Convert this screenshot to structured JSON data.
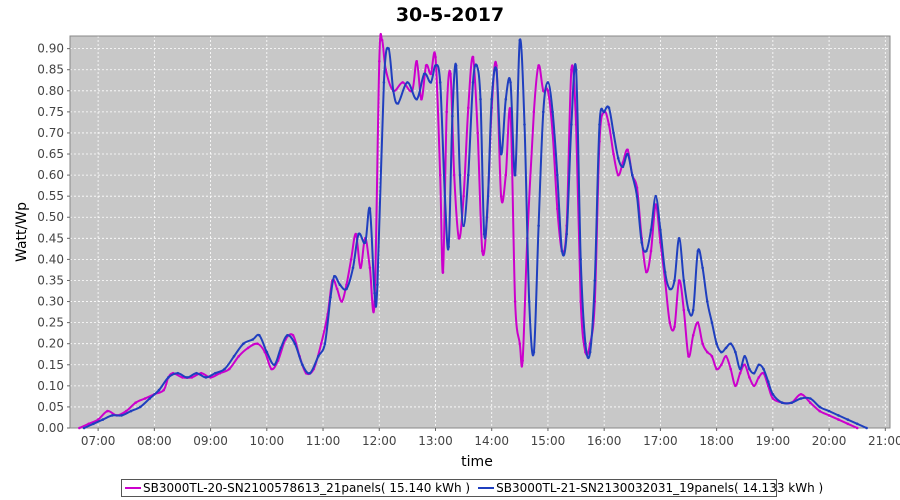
{
  "chart_data": {
    "type": "line",
    "title": "30-5-2017",
    "xlabel": "time",
    "ylabel": "Watt/Wp",
    "x_ticks": [
      "07:00",
      "08:00",
      "09:00",
      "10:00",
      "11:00",
      "12:00",
      "13:00",
      "14:00",
      "15:00",
      "16:00",
      "17:00",
      "18:00",
      "19:00",
      "20:00",
      "21:00"
    ],
    "y_ticks": [
      "0.00",
      "0.05",
      "0.10",
      "0.15",
      "0.20",
      "0.25",
      "0.30",
      "0.35",
      "0.40",
      "0.45",
      "0.50",
      "0.55",
      "0.60",
      "0.65",
      "0.70",
      "0.75",
      "0.80",
      "0.85",
      "0.90"
    ],
    "xlim": [
      "06:30",
      "21:05"
    ],
    "ylim": [
      0,
      0.93
    ],
    "grid": true,
    "legend_position": "bottom",
    "series": [
      {
        "name": "SB3000TL-20-SN2100578613_21panels( 15.140 kWh )",
        "color": "#cc00cc",
        "points": [
          [
            "06:40",
            0.0
          ],
          [
            "06:50",
            0.01
          ],
          [
            "07:00",
            0.02
          ],
          [
            "07:10",
            0.04
          ],
          [
            "07:20",
            0.03
          ],
          [
            "07:30",
            0.04
          ],
          [
            "07:40",
            0.06
          ],
          [
            "07:50",
            0.07
          ],
          [
            "08:00",
            0.08
          ],
          [
            "08:10",
            0.09
          ],
          [
            "08:15",
            0.12
          ],
          [
            "08:20",
            0.13
          ],
          [
            "08:30",
            0.12
          ],
          [
            "08:40",
            0.12
          ],
          [
            "08:50",
            0.13
          ],
          [
            "09:00",
            0.12
          ],
          [
            "09:10",
            0.13
          ],
          [
            "09:20",
            0.14
          ],
          [
            "09:30",
            0.17
          ],
          [
            "09:40",
            0.19
          ],
          [
            "09:50",
            0.2
          ],
          [
            "09:58",
            0.18
          ],
          [
            "10:05",
            0.14
          ],
          [
            "10:12",
            0.16
          ],
          [
            "10:20",
            0.21
          ],
          [
            "10:28",
            0.22
          ],
          [
            "10:35",
            0.17
          ],
          [
            "10:42",
            0.13
          ],
          [
            "10:50",
            0.14
          ],
          [
            "10:58",
            0.2
          ],
          [
            "11:05",
            0.27
          ],
          [
            "11:10",
            0.35
          ],
          [
            "11:15",
            0.33
          ],
          [
            "11:20",
            0.3
          ],
          [
            "11:25",
            0.34
          ],
          [
            "11:30",
            0.4
          ],
          [
            "11:35",
            0.46
          ],
          [
            "11:40",
            0.38
          ],
          [
            "11:45",
            0.45
          ],
          [
            "11:50",
            0.38
          ],
          [
            "11:55",
            0.3
          ],
          [
            "12:00",
            0.87
          ],
          [
            "12:03",
            0.92
          ],
          [
            "12:07",
            0.85
          ],
          [
            "12:15",
            0.8
          ],
          [
            "12:25",
            0.82
          ],
          [
            "12:35",
            0.8
          ],
          [
            "12:40",
            0.87
          ],
          [
            "12:45",
            0.78
          ],
          [
            "12:50",
            0.86
          ],
          [
            "12:55",
            0.84
          ],
          [
            "13:00",
            0.88
          ],
          [
            "13:05",
            0.6
          ],
          [
            "13:08",
            0.37
          ],
          [
            "13:12",
            0.75
          ],
          [
            "13:16",
            0.84
          ],
          [
            "13:20",
            0.6
          ],
          [
            "13:25",
            0.45
          ],
          [
            "13:30",
            0.55
          ],
          [
            "13:35",
            0.76
          ],
          [
            "13:40",
            0.88
          ],
          [
            "13:45",
            0.7
          ],
          [
            "13:50",
            0.42
          ],
          [
            "13:55",
            0.5
          ],
          [
            "14:00",
            0.76
          ],
          [
            "14:05",
            0.86
          ],
          [
            "14:10",
            0.55
          ],
          [
            "14:15",
            0.6
          ],
          [
            "14:20",
            0.75
          ],
          [
            "14:25",
            0.3
          ],
          [
            "14:30",
            0.2
          ],
          [
            "14:33",
            0.16
          ],
          [
            "14:38",
            0.45
          ],
          [
            "14:45",
            0.75
          ],
          [
            "14:50",
            0.86
          ],
          [
            "14:55",
            0.8
          ],
          [
            "15:00",
            0.8
          ],
          [
            "15:05",
            0.7
          ],
          [
            "15:10",
            0.52
          ],
          [
            "15:15",
            0.42
          ],
          [
            "15:20",
            0.48
          ],
          [
            "15:25",
            0.85
          ],
          [
            "15:30",
            0.72
          ],
          [
            "15:35",
            0.3
          ],
          [
            "15:40",
            0.18
          ],
          [
            "15:45",
            0.2
          ],
          [
            "15:50",
            0.3
          ],
          [
            "15:55",
            0.68
          ],
          [
            "16:00",
            0.75
          ],
          [
            "16:05",
            0.72
          ],
          [
            "16:10",
            0.65
          ],
          [
            "16:15",
            0.6
          ],
          [
            "16:20",
            0.63
          ],
          [
            "16:25",
            0.66
          ],
          [
            "16:30",
            0.6
          ],
          [
            "16:35",
            0.57
          ],
          [
            "16:40",
            0.45
          ],
          [
            "16:45",
            0.37
          ],
          [
            "16:50",
            0.42
          ],
          [
            "16:55",
            0.53
          ],
          [
            "17:00",
            0.44
          ],
          [
            "17:05",
            0.35
          ],
          [
            "17:10",
            0.25
          ],
          [
            "17:15",
            0.24
          ],
          [
            "17:20",
            0.35
          ],
          [
            "17:25",
            0.28
          ],
          [
            "17:30",
            0.17
          ],
          [
            "17:35",
            0.22
          ],
          [
            "17:40",
            0.25
          ],
          [
            "17:45",
            0.2
          ],
          [
            "17:50",
            0.18
          ],
          [
            "17:55",
            0.17
          ],
          [
            "18:00",
            0.14
          ],
          [
            "18:05",
            0.15
          ],
          [
            "18:10",
            0.17
          ],
          [
            "18:15",
            0.14
          ],
          [
            "18:20",
            0.1
          ],
          [
            "18:25",
            0.13
          ],
          [
            "18:30",
            0.15
          ],
          [
            "18:35",
            0.12
          ],
          [
            "18:40",
            0.1
          ],
          [
            "18:45",
            0.12
          ],
          [
            "18:50",
            0.13
          ],
          [
            "18:55",
            0.1
          ],
          [
            "19:00",
            0.07
          ],
          [
            "19:10",
            0.06
          ],
          [
            "19:20",
            0.06
          ],
          [
            "19:30",
            0.08
          ],
          [
            "19:40",
            0.06
          ],
          [
            "19:50",
            0.04
          ],
          [
            "20:00",
            0.03
          ],
          [
            "20:10",
            0.02
          ],
          [
            "20:20",
            0.01
          ],
          [
            "20:30",
            0.0
          ]
        ]
      },
      {
        "name": "SB3000TL-21-SN2130032031_19panels( 14.133 kWh )",
        "color": "#1f3fbf",
        "points": [
          [
            "06:45",
            0.0
          ],
          [
            "06:55",
            0.01
          ],
          [
            "07:05",
            0.02
          ],
          [
            "07:15",
            0.03
          ],
          [
            "07:25",
            0.03
          ],
          [
            "07:35",
            0.04
          ],
          [
            "07:45",
            0.05
          ],
          [
            "07:55",
            0.07
          ],
          [
            "08:05",
            0.09
          ],
          [
            "08:15",
            0.12
          ],
          [
            "08:25",
            0.13
          ],
          [
            "08:35",
            0.12
          ],
          [
            "08:45",
            0.13
          ],
          [
            "08:55",
            0.12
          ],
          [
            "09:05",
            0.13
          ],
          [
            "09:15",
            0.14
          ],
          [
            "09:25",
            0.17
          ],
          [
            "09:35",
            0.2
          ],
          [
            "09:45",
            0.21
          ],
          [
            "09:52",
            0.22
          ],
          [
            "10:00",
            0.18
          ],
          [
            "10:08",
            0.15
          ],
          [
            "10:15",
            0.19
          ],
          [
            "10:22",
            0.22
          ],
          [
            "10:30",
            0.2
          ],
          [
            "10:38",
            0.15
          ],
          [
            "10:46",
            0.13
          ],
          [
            "10:55",
            0.17
          ],
          [
            "11:02",
            0.2
          ],
          [
            "11:08",
            0.31
          ],
          [
            "11:12",
            0.36
          ],
          [
            "11:18",
            0.34
          ],
          [
            "11:25",
            0.33
          ],
          [
            "11:32",
            0.38
          ],
          [
            "11:38",
            0.46
          ],
          [
            "11:45",
            0.44
          ],
          [
            "11:50",
            0.52
          ],
          [
            "11:55",
            0.32
          ],
          [
            "11:58",
            0.34
          ],
          [
            "12:05",
            0.82
          ],
          [
            "12:10",
            0.9
          ],
          [
            "12:15",
            0.8
          ],
          [
            "12:20",
            0.77
          ],
          [
            "12:30",
            0.82
          ],
          [
            "12:40",
            0.78
          ],
          [
            "12:48",
            0.84
          ],
          [
            "12:55",
            0.82
          ],
          [
            "13:00",
            0.86
          ],
          [
            "13:05",
            0.82
          ],
          [
            "13:10",
            0.55
          ],
          [
            "13:14",
            0.43
          ],
          [
            "13:18",
            0.74
          ],
          [
            "13:22",
            0.86
          ],
          [
            "13:26",
            0.6
          ],
          [
            "13:30",
            0.48
          ],
          [
            "13:35",
            0.6
          ],
          [
            "13:40",
            0.82
          ],
          [
            "13:44",
            0.86
          ],
          [
            "13:48",
            0.78
          ],
          [
            "13:52",
            0.46
          ],
          [
            "13:56",
            0.55
          ],
          [
            "14:00",
            0.78
          ],
          [
            "14:05",
            0.85
          ],
          [
            "14:10",
            0.65
          ],
          [
            "14:15",
            0.78
          ],
          [
            "14:20",
            0.82
          ],
          [
            "14:25",
            0.6
          ],
          [
            "14:30",
            0.92
          ],
          [
            "14:35",
            0.72
          ],
          [
            "14:40",
            0.3
          ],
          [
            "14:45",
            0.18
          ],
          [
            "14:50",
            0.48
          ],
          [
            "14:55",
            0.75
          ],
          [
            "15:00",
            0.82
          ],
          [
            "15:05",
            0.75
          ],
          [
            "15:10",
            0.6
          ],
          [
            "15:15",
            0.42
          ],
          [
            "15:20",
            0.46
          ],
          [
            "15:25",
            0.72
          ],
          [
            "15:30",
            0.85
          ],
          [
            "15:35",
            0.4
          ],
          [
            "15:40",
            0.2
          ],
          [
            "15:45",
            0.18
          ],
          [
            "15:50",
            0.35
          ],
          [
            "15:55",
            0.72
          ],
          [
            "16:00",
            0.75
          ],
          [
            "16:05",
            0.76
          ],
          [
            "16:10",
            0.7
          ],
          [
            "16:15",
            0.64
          ],
          [
            "16:20",
            0.62
          ],
          [
            "16:25",
            0.65
          ],
          [
            "16:30",
            0.6
          ],
          [
            "16:35",
            0.55
          ],
          [
            "16:40",
            0.44
          ],
          [
            "16:45",
            0.42
          ],
          [
            "16:50",
            0.47
          ],
          [
            "16:55",
            0.55
          ],
          [
            "17:00",
            0.47
          ],
          [
            "17:05",
            0.37
          ],
          [
            "17:10",
            0.33
          ],
          [
            "17:15",
            0.35
          ],
          [
            "17:20",
            0.45
          ],
          [
            "17:25",
            0.35
          ],
          [
            "17:30",
            0.28
          ],
          [
            "17:35",
            0.28
          ],
          [
            "17:40",
            0.42
          ],
          [
            "17:45",
            0.38
          ],
          [
            "17:50",
            0.3
          ],
          [
            "17:55",
            0.25
          ],
          [
            "18:00",
            0.2
          ],
          [
            "18:05",
            0.18
          ],
          [
            "18:10",
            0.19
          ],
          [
            "18:15",
            0.2
          ],
          [
            "18:20",
            0.18
          ],
          [
            "18:25",
            0.14
          ],
          [
            "18:30",
            0.17
          ],
          [
            "18:35",
            0.14
          ],
          [
            "18:40",
            0.13
          ],
          [
            "18:45",
            0.15
          ],
          [
            "18:50",
            0.14
          ],
          [
            "18:55",
            0.11
          ],
          [
            "19:00",
            0.08
          ],
          [
            "19:10",
            0.06
          ],
          [
            "19:20",
            0.06
          ],
          [
            "19:30",
            0.07
          ],
          [
            "19:40",
            0.07
          ],
          [
            "19:50",
            0.05
          ],
          [
            "20:00",
            0.04
          ],
          [
            "20:10",
            0.03
          ],
          [
            "20:20",
            0.02
          ],
          [
            "20:30",
            0.01
          ],
          [
            "20:40",
            0.0
          ]
        ]
      }
    ]
  }
}
